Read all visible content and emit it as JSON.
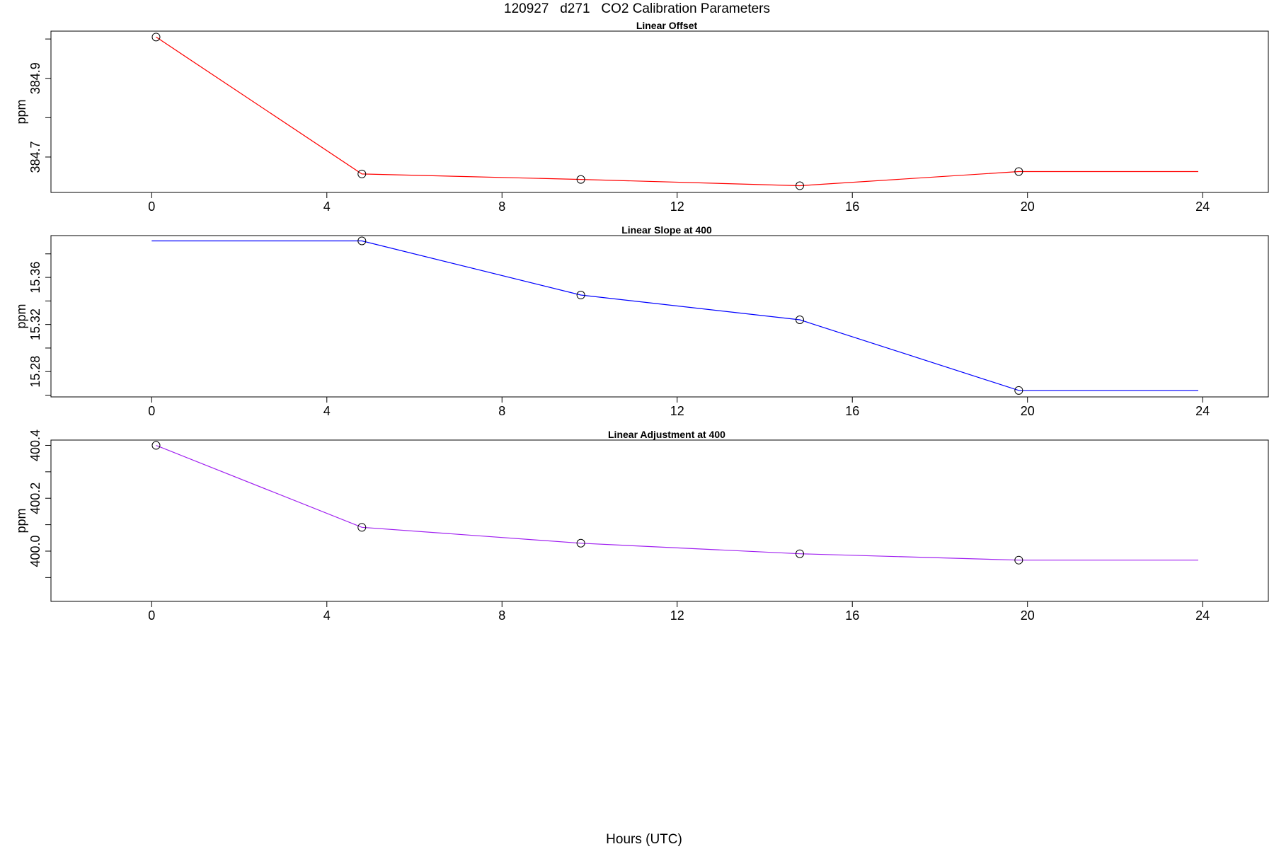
{
  "figure": {
    "title": "120927   d271   CO2 Calibration Parameters",
    "xlabel": "Hours (UTC)"
  },
  "chart_data": [
    {
      "type": "line",
      "title": "Linear Offset",
      "ylabel": "ppm",
      "xlabel": "",
      "xlim": [
        -2.3,
        25.5
      ],
      "ylim": [
        384.61,
        385.02
      ],
      "x_ticks": [
        0,
        4,
        8,
        12,
        16,
        20,
        24
      ],
      "x_tick_labels": [
        "0",
        "4",
        "8",
        "12",
        "16",
        "20",
        "24"
      ],
      "y_ticks": [
        384.6,
        384.7,
        384.8,
        384.9,
        385.0
      ],
      "y_tick_labels": [
        "",
        "384.7",
        "",
        "384.9",
        ""
      ],
      "grid": false,
      "series": [
        {
          "color": "#ff0000",
          "x": [
            0.1,
            4.8,
            9.8,
            14.8,
            19.8,
            23.9
          ],
          "y": [
            385.005,
            384.657,
            384.643,
            384.627,
            384.663,
            384.663
          ],
          "markers": [
            true,
            true,
            true,
            true,
            true,
            false
          ]
        }
      ]
    },
    {
      "type": "line",
      "title": "Linear Slope at 400",
      "ylabel": "ppm",
      "xlabel": "",
      "xlim": [
        -2.3,
        25.5
      ],
      "ylim": [
        15.2585,
        15.3955
      ],
      "x_ticks": [
        0,
        4,
        8,
        12,
        16,
        20,
        24
      ],
      "x_tick_labels": [
        "0",
        "4",
        "8",
        "12",
        "16",
        "20",
        "24"
      ],
      "y_ticks": [
        15.26,
        15.28,
        15.3,
        15.32,
        15.34,
        15.36,
        15.38
      ],
      "y_tick_labels": [
        "",
        "15.28",
        "",
        "15.32",
        "",
        "15.36",
        ""
      ],
      "grid": false,
      "series": [
        {
          "color": "#0000ff",
          "x": [
            0.0,
            4.8,
            9.8,
            14.8,
            19.8,
            23.9
          ],
          "y": [
            15.391,
            15.391,
            15.345,
            15.324,
            15.264,
            15.264
          ],
          "markers": [
            false,
            true,
            true,
            true,
            true,
            false
          ]
        }
      ]
    },
    {
      "type": "line",
      "title": "Linear Adjustment at 400",
      "ylabel": "ppm",
      "xlabel": "",
      "xlim": [
        -2.3,
        25.5
      ],
      "ylim": [
        399.81,
        400.42
      ],
      "x_ticks": [
        0,
        4,
        8,
        12,
        16,
        20,
        24
      ],
      "x_tick_labels": [
        "0",
        "4",
        "8",
        "12",
        "16",
        "20",
        "24"
      ],
      "y_ticks": [
        399.9,
        400.0,
        400.1,
        400.2,
        400.3,
        400.4
      ],
      "y_tick_labels": [
        "",
        "400.0",
        "",
        "400.2",
        "",
        "400.4"
      ],
      "grid": false,
      "series": [
        {
          "color": "#a020f0",
          "x": [
            0.1,
            4.8,
            9.8,
            14.8,
            19.8,
            23.9
          ],
          "y": [
            400.4,
            400.09,
            400.03,
            399.99,
            399.966,
            399.966
          ],
          "markers": [
            true,
            true,
            true,
            true,
            true,
            false
          ]
        }
      ]
    }
  ]
}
